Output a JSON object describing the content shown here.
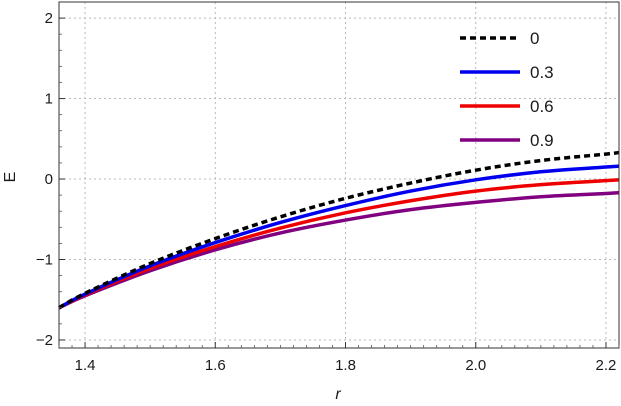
{
  "chart_data": {
    "type": "line",
    "xlabel": "r",
    "ylabel": "E",
    "xlim": [
      1.36,
      2.22
    ],
    "ylim": [
      -2.1,
      2.2
    ],
    "xticks": [
      1.4,
      1.6,
      1.8,
      2.0,
      2.2
    ],
    "xtick_labels": [
      "1.4",
      "1.6",
      "1.8",
      "2.0",
      "2.2"
    ],
    "yticks": [
      -2,
      -1,
      0,
      1,
      2
    ],
    "ytick_labels": [
      "−2",
      "−1",
      "0",
      "1",
      "2"
    ],
    "grid": true,
    "legend_position": "top-right",
    "x": [
      1.36,
      1.4,
      1.5,
      1.6,
      1.7,
      1.8,
      1.9,
      2.0,
      2.1,
      2.2,
      2.22
    ],
    "series": [
      {
        "name": "0",
        "color": "#000000",
        "dash": true,
        "values": [
          -1.6,
          -1.42,
          -1.05,
          -0.74,
          -0.47,
          -0.24,
          -0.05,
          0.11,
          0.23,
          0.31,
          0.33
        ]
      },
      {
        "name": "0.3",
        "color": "#0000ee",
        "dash": false,
        "values": [
          -1.6,
          -1.43,
          -1.08,
          -0.79,
          -0.54,
          -0.33,
          -0.15,
          -0.01,
          0.09,
          0.15,
          0.16
        ]
      },
      {
        "name": "0.6",
        "color": "#ee0000",
        "dash": false,
        "values": [
          -1.6,
          -1.44,
          -1.11,
          -0.84,
          -0.61,
          -0.42,
          -0.27,
          -0.15,
          -0.07,
          -0.02,
          -0.01
        ]
      },
      {
        "name": "0.9",
        "color": "#800080",
        "dash": false,
        "values": [
          -1.6,
          -1.45,
          -1.14,
          -0.88,
          -0.67,
          -0.51,
          -0.38,
          -0.29,
          -0.22,
          -0.18,
          -0.17
        ]
      }
    ]
  }
}
